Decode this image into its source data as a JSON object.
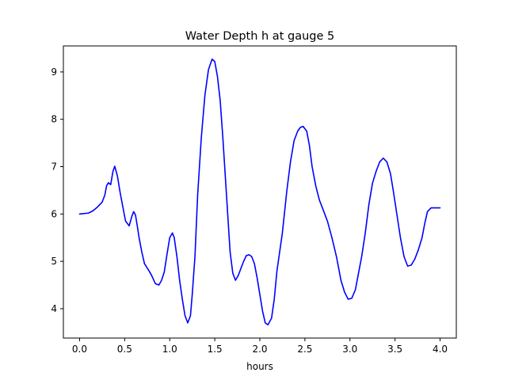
{
  "chart_data": {
    "type": "line",
    "title": "Water Depth h at gauge 5",
    "xlabel": "hours",
    "ylabel": "",
    "xlim": [
      -0.18,
      4.18
    ],
    "ylim": [
      3.38,
      9.55
    ],
    "xticks": [
      0.0,
      0.5,
      1.0,
      1.5,
      2.0,
      2.5,
      3.0,
      3.5,
      4.0
    ],
    "xtick_labels": [
      "0.0",
      "0.5",
      "1.0",
      "1.5",
      "2.0",
      "2.5",
      "3.0",
      "3.5",
      "4.0"
    ],
    "yticks": [
      4,
      5,
      6,
      7,
      8,
      9
    ],
    "ytick_labels": [
      "4",
      "5",
      "6",
      "7",
      "8",
      "9"
    ],
    "grid": false,
    "series": [
      {
        "color": "#0000ff",
        "x": [
          0.0,
          0.1,
          0.15,
          0.2,
          0.25,
          0.28,
          0.3,
          0.32,
          0.345,
          0.37,
          0.39,
          0.42,
          0.45,
          0.48,
          0.51,
          0.55,
          0.58,
          0.6,
          0.62,
          0.64,
          0.66,
          0.69,
          0.72,
          0.77,
          0.8,
          0.84,
          0.88,
          0.91,
          0.94,
          0.97,
          1.0,
          1.03,
          1.05,
          1.08,
          1.11,
          1.14,
          1.17,
          1.2,
          1.23,
          1.25,
          1.28,
          1.31,
          1.35,
          1.39,
          1.43,
          1.47,
          1.5,
          1.53,
          1.56,
          1.59,
          1.63,
          1.67,
          1.7,
          1.73,
          1.76,
          1.79,
          1.82,
          1.85,
          1.88,
          1.91,
          1.94,
          1.97,
          2.0,
          2.03,
          2.06,
          2.09,
          2.13,
          2.16,
          2.19,
          2.22,
          2.25,
          2.3,
          2.34,
          2.38,
          2.42,
          2.45,
          2.48,
          2.52,
          2.55,
          2.58,
          2.62,
          2.66,
          2.7,
          2.75,
          2.8,
          2.85,
          2.9,
          2.94,
          2.98,
          3.02,
          3.06,
          3.09,
          3.13,
          3.17,
          3.21,
          3.25,
          3.29,
          3.33,
          3.37,
          3.41,
          3.45,
          3.48,
          3.52,
          3.56,
          3.6,
          3.64,
          3.68,
          3.72,
          3.76,
          3.8,
          3.83,
          3.86,
          3.9,
          3.94,
          3.97,
          4.0
        ],
        "y": [
          6.0,
          6.02,
          6.07,
          6.15,
          6.25,
          6.4,
          6.6,
          6.66,
          6.62,
          6.9,
          7.01,
          6.8,
          6.45,
          6.15,
          5.85,
          5.75,
          5.95,
          6.05,
          5.98,
          5.75,
          5.5,
          5.2,
          4.95,
          4.8,
          4.7,
          4.53,
          4.5,
          4.6,
          4.78,
          5.15,
          5.5,
          5.6,
          5.5,
          5.1,
          4.6,
          4.2,
          3.85,
          3.7,
          3.85,
          4.3,
          5.1,
          6.4,
          7.6,
          8.5,
          9.05,
          9.27,
          9.22,
          8.9,
          8.4,
          7.6,
          6.4,
          5.2,
          4.75,
          4.6,
          4.7,
          4.85,
          5.0,
          5.12,
          5.14,
          5.1,
          4.95,
          4.65,
          4.3,
          3.95,
          3.7,
          3.66,
          3.8,
          4.2,
          4.8,
          5.2,
          5.6,
          6.5,
          7.1,
          7.55,
          7.75,
          7.83,
          7.85,
          7.75,
          7.45,
          7.0,
          6.6,
          6.3,
          6.1,
          5.85,
          5.5,
          5.1,
          4.6,
          4.35,
          4.2,
          4.22,
          4.4,
          4.7,
          5.1,
          5.6,
          6.2,
          6.65,
          6.9,
          7.1,
          7.18,
          7.1,
          6.85,
          6.5,
          6.0,
          5.5,
          5.1,
          4.9,
          4.92,
          5.05,
          5.25,
          5.5,
          5.8,
          6.05,
          6.13,
          6.13,
          6.13,
          6.13
        ]
      }
    ]
  }
}
